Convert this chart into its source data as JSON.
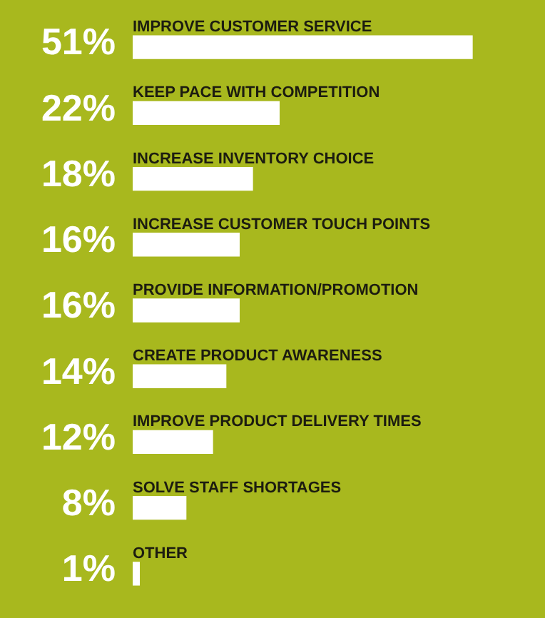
{
  "chart_data": {
    "type": "bar",
    "orientation": "horizontal",
    "categories": [
      "IMPROVE CUSTOMER SERVICE",
      "KEEP PACE WITH COMPETITION",
      "INCREASE INVENTORY CHOICE",
      "INCREASE CUSTOMER TOUCH POINTS",
      "PROVIDE INFORMATION/PROMOTION",
      "CREATE PRODUCT AWARENESS",
      "IMPROVE PRODUCT DELIVERY TIMES",
      "SOLVE STAFF SHORTAGES",
      "OTHER"
    ],
    "values": [
      51,
      22,
      18,
      16,
      16,
      14,
      12,
      8,
      1
    ],
    "value_labels": [
      "51%",
      "22%",
      "18%",
      "16%",
      "16%",
      "14%",
      "12%",
      "8%",
      "1%"
    ],
    "color": "#ffffff"
  }
}
